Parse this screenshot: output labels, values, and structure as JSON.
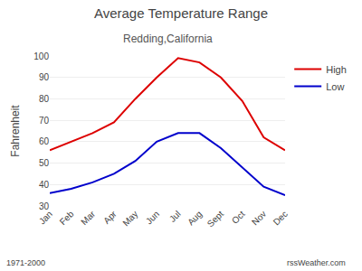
{
  "chart_data": {
    "type": "line",
    "title": "Average Temperature Range",
    "subtitle": "Redding,California",
    "ylabel": "Fahrenheit",
    "categories": [
      "Jan",
      "Feb",
      "Mar",
      "Apr",
      "May",
      "Jun",
      "Jul",
      "Aug",
      "Sept",
      "Oct",
      "Nov",
      "Dec"
    ],
    "series": [
      {
        "name": "High",
        "color": "#dd0000",
        "values": [
          56,
          60,
          64,
          69,
          80,
          90,
          99,
          97,
          90,
          79,
          62,
          56
        ]
      },
      {
        "name": "Low",
        "color": "#0000cc",
        "values": [
          36,
          38,
          41,
          45,
          51,
          60,
          64,
          64,
          57,
          48,
          39,
          35
        ]
      }
    ],
    "ylim": [
      30,
      100
    ],
    "yticks": [
      30,
      40,
      50,
      60,
      70,
      80,
      90,
      100
    ],
    "annotations": [
      "1971-2000",
      "rssWeather.com"
    ],
    "grid": true,
    "legend": "upper right"
  }
}
